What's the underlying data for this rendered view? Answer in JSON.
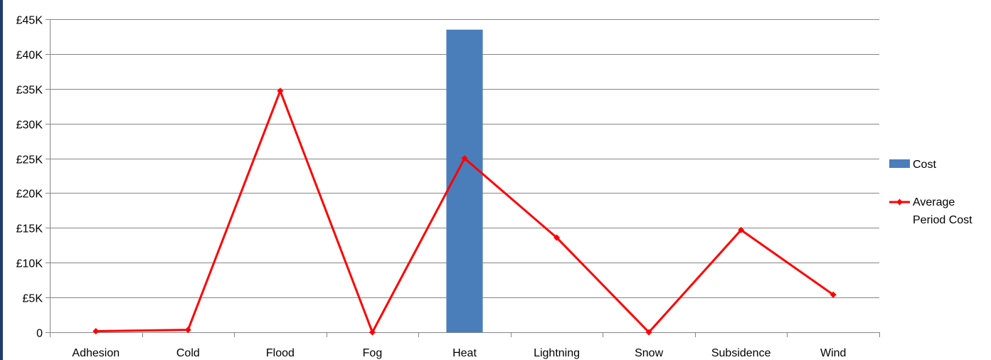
{
  "colors": {
    "bar": "#4a7ebb",
    "line": "#ff0000",
    "grid": "#868686",
    "axis": "#868686",
    "frame": "#1f3a6b"
  },
  "chart_data": {
    "type": "bar",
    "title": "",
    "xlabel": "",
    "ylabel": "",
    "categories": [
      "Adhesion",
      "Cold",
      "Flood",
      "Fog",
      "Heat",
      "Lightning",
      "Snow",
      "Subsidence",
      "Wind"
    ],
    "ylim": [
      0,
      45000
    ],
    "y_ticks": [
      0,
      5000,
      10000,
      15000,
      20000,
      25000,
      30000,
      35000,
      40000,
      45000
    ],
    "y_tick_labels": [
      "0",
      "£5K",
      "£10K",
      "£15K",
      "£20K",
      "£25K",
      "£30K",
      "£35K",
      "£40K",
      "£45K"
    ],
    "grid": true,
    "legend_position": "right",
    "series": [
      {
        "name": "Cost",
        "type": "bar",
        "color": "#4a7ebb",
        "values": [
          0,
          0,
          0,
          0,
          43500,
          0,
          0,
          0,
          0
        ]
      },
      {
        "name": "Average Period Cost",
        "type": "line",
        "color": "#ff0000",
        "marker": "diamond",
        "values": [
          150,
          350,
          34700,
          0,
          25000,
          13600,
          0,
          14700,
          5400
        ]
      }
    ],
    "legend": {
      "items": [
        {
          "label_lines": [
            "Cost"
          ],
          "kind": "bar"
        },
        {
          "label_lines": [
            "Average",
            "Period Cost"
          ],
          "kind": "line"
        }
      ]
    }
  }
}
